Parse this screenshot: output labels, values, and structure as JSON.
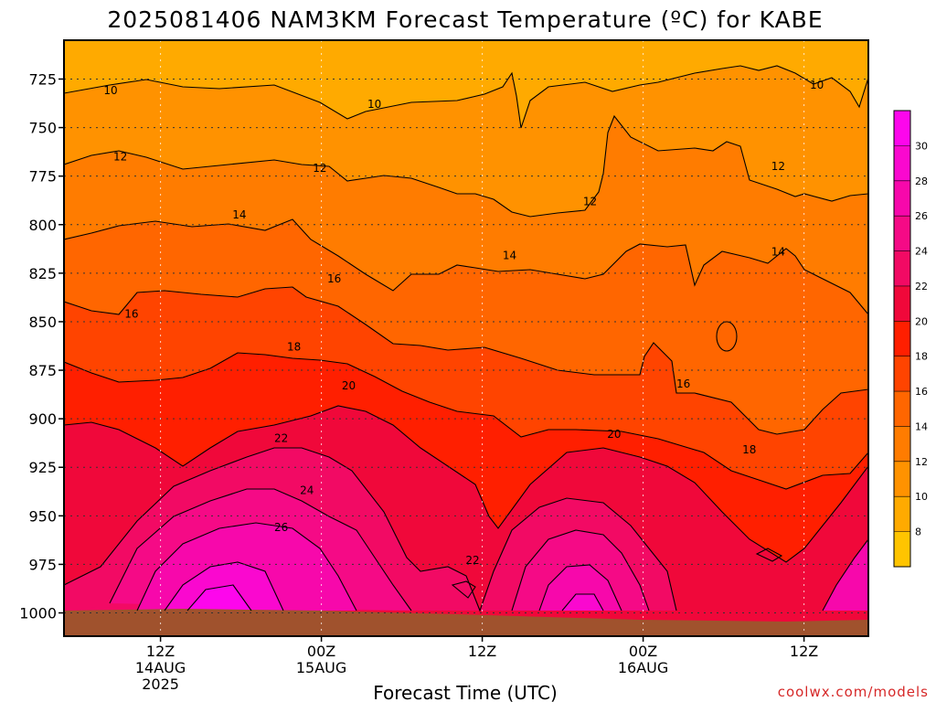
{
  "title": "2025081406 NAM3KM Forecast Temperature (ºC) for KABE",
  "credit": "coolwx.com/models",
  "credit_color": "#d62828",
  "chart_data": {
    "type": "contour",
    "xlabel": "Forecast Time (UTC)",
    "ylabel": "",
    "y_inverted": true,
    "ylim": [
      1012,
      705
    ],
    "x_range_hours": [
      -6,
      44
    ],
    "y_ticks": [
      725,
      750,
      775,
      800,
      825,
      850,
      875,
      900,
      925,
      950,
      975,
      1000
    ],
    "x_ticks": [
      {
        "hours": 0,
        "line1": "12Z",
        "line2": "14AUG",
        "line3": "2025"
      },
      {
        "hours": 10,
        "line1": "00Z",
        "line2": "15AUG",
        "line3": ""
      },
      {
        "hours": 20,
        "line1": "12Z",
        "line2": "",
        "line3": ""
      },
      {
        "hours": 30,
        "line1": "00Z",
        "line2": "16AUG",
        "line3": ""
      },
      {
        "hours": 40,
        "line1": "12Z",
        "line2": "",
        "line3": ""
      }
    ],
    "grid": true,
    "colorbar": {
      "levels": [
        8,
        10,
        12,
        14,
        16,
        18,
        20,
        22,
        24,
        26,
        28,
        30
      ],
      "colors": [
        "#ffc400",
        "#ffaa00",
        "#ff9200",
        "#ff7c00",
        "#ff6600",
        "#ff4400",
        "#ff1f00",
        "#f0083a",
        "#f20a64",
        "#f50a86",
        "#f708ab",
        "#fa08cf",
        "#fd06ec"
      ]
    },
    "contour_labels": [
      {
        "value": "10",
        "hours": -3.1,
        "p": 731
      },
      {
        "value": "10",
        "hours": 13.3,
        "p": 738
      },
      {
        "value": "10",
        "hours": 40.8,
        "p": 728
      },
      {
        "value": "12",
        "hours": -2.5,
        "p": 765
      },
      {
        "value": "12",
        "hours": 9.9,
        "p": 771
      },
      {
        "value": "12",
        "hours": 26.7,
        "p": 788
      },
      {
        "value": "12",
        "hours": 38.4,
        "p": 770
      },
      {
        "value": "14",
        "hours": 4.9,
        "p": 795
      },
      {
        "value": "14",
        "hours": 21.7,
        "p": 816
      },
      {
        "value": "14",
        "hours": 38.4,
        "p": 814
      },
      {
        "value": "16",
        "hours": -1.8,
        "p": 846
      },
      {
        "value": "16",
        "hours": 10.8,
        "p": 828
      },
      {
        "value": "16",
        "hours": 32.5,
        "p": 882
      },
      {
        "value": "18",
        "hours": 8.3,
        "p": 863
      },
      {
        "value": "18",
        "hours": 36.6,
        "p": 916
      },
      {
        "value": "20",
        "hours": 11.7,
        "p": 883
      },
      {
        "value": "20",
        "hours": 28.2,
        "p": 908
      },
      {
        "value": "22",
        "hours": 7.5,
        "p": 910
      },
      {
        "value": "22",
        "hours": 19.4,
        "p": 973
      },
      {
        "value": "24",
        "hours": 9.1,
        "p": 937
      },
      {
        "value": "26",
        "hours": 7.5,
        "p": 956
      }
    ]
  }
}
